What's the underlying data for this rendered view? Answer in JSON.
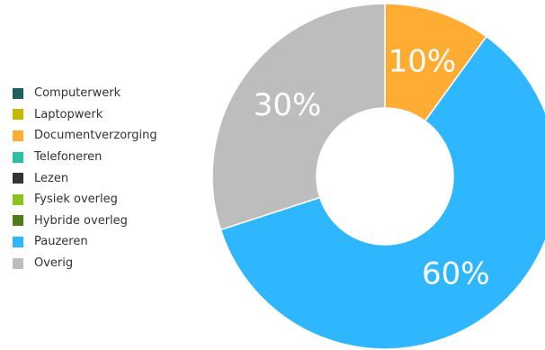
{
  "chart_data": {
    "type": "pie",
    "variant": "donut",
    "title": "",
    "legend": {
      "placement": "left",
      "entries": [
        {
          "name": "Computerwerk",
          "color": "#1f5f5b"
        },
        {
          "name": "Laptopwerk",
          "color": "#c9b800"
        },
        {
          "name": "Documentverzorging",
          "color": "#ffac33"
        },
        {
          "name": "Telefoneren",
          "color": "#2bbfa4"
        },
        {
          "name": "Lezen",
          "color": "#333333"
        },
        {
          "name": "Fysiek overleg",
          "color": "#8cc21e"
        },
        {
          "name": "Hybride overleg",
          "color": "#4f7d17"
        },
        {
          "name": "Pauzeren",
          "color": "#2eb7ff"
        },
        {
          "name": "Overig",
          "color": "#bdbdbd"
        }
      ]
    },
    "slices": [
      {
        "name": "Documentverzorging",
        "value": 10,
        "label": "10%",
        "color": "#ffac33"
      },
      {
        "name": "Pauzeren",
        "value": 60,
        "label": "60%",
        "color": "#2eb7ff"
      },
      {
        "name": "Overig",
        "value": 30,
        "label": "30%",
        "color": "#bdbdbd"
      }
    ]
  }
}
